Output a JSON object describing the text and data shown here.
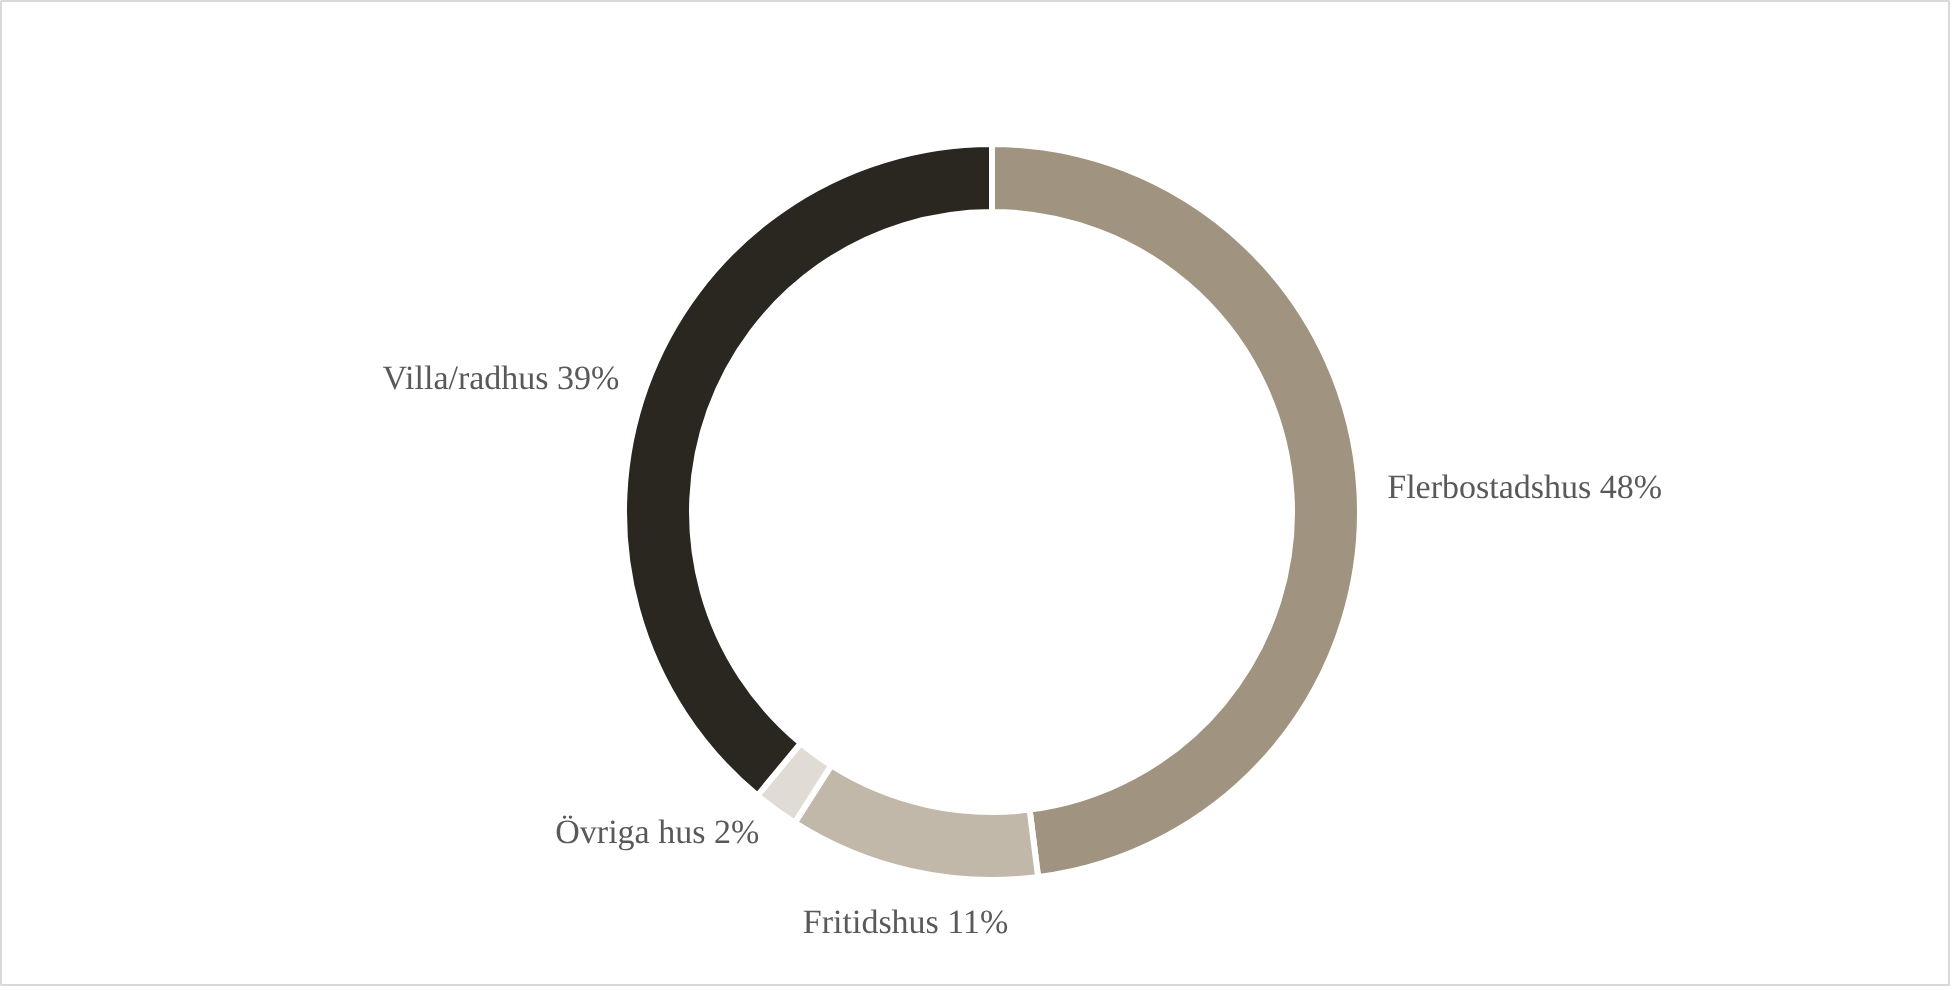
{
  "chart_data": {
    "type": "donut",
    "categories": [
      "Flerbostadshus",
      "Fritidshus",
      "Övriga hus",
      "Villa/radhus"
    ],
    "values": [
      48,
      11,
      2,
      39
    ],
    "colors": [
      "#a09380",
      "#c1b8aa",
      "#e0dbd4",
      "#2a2620"
    ],
    "value_labels": [
      "48%",
      "11%",
      "2%",
      "39%"
    ]
  }
}
